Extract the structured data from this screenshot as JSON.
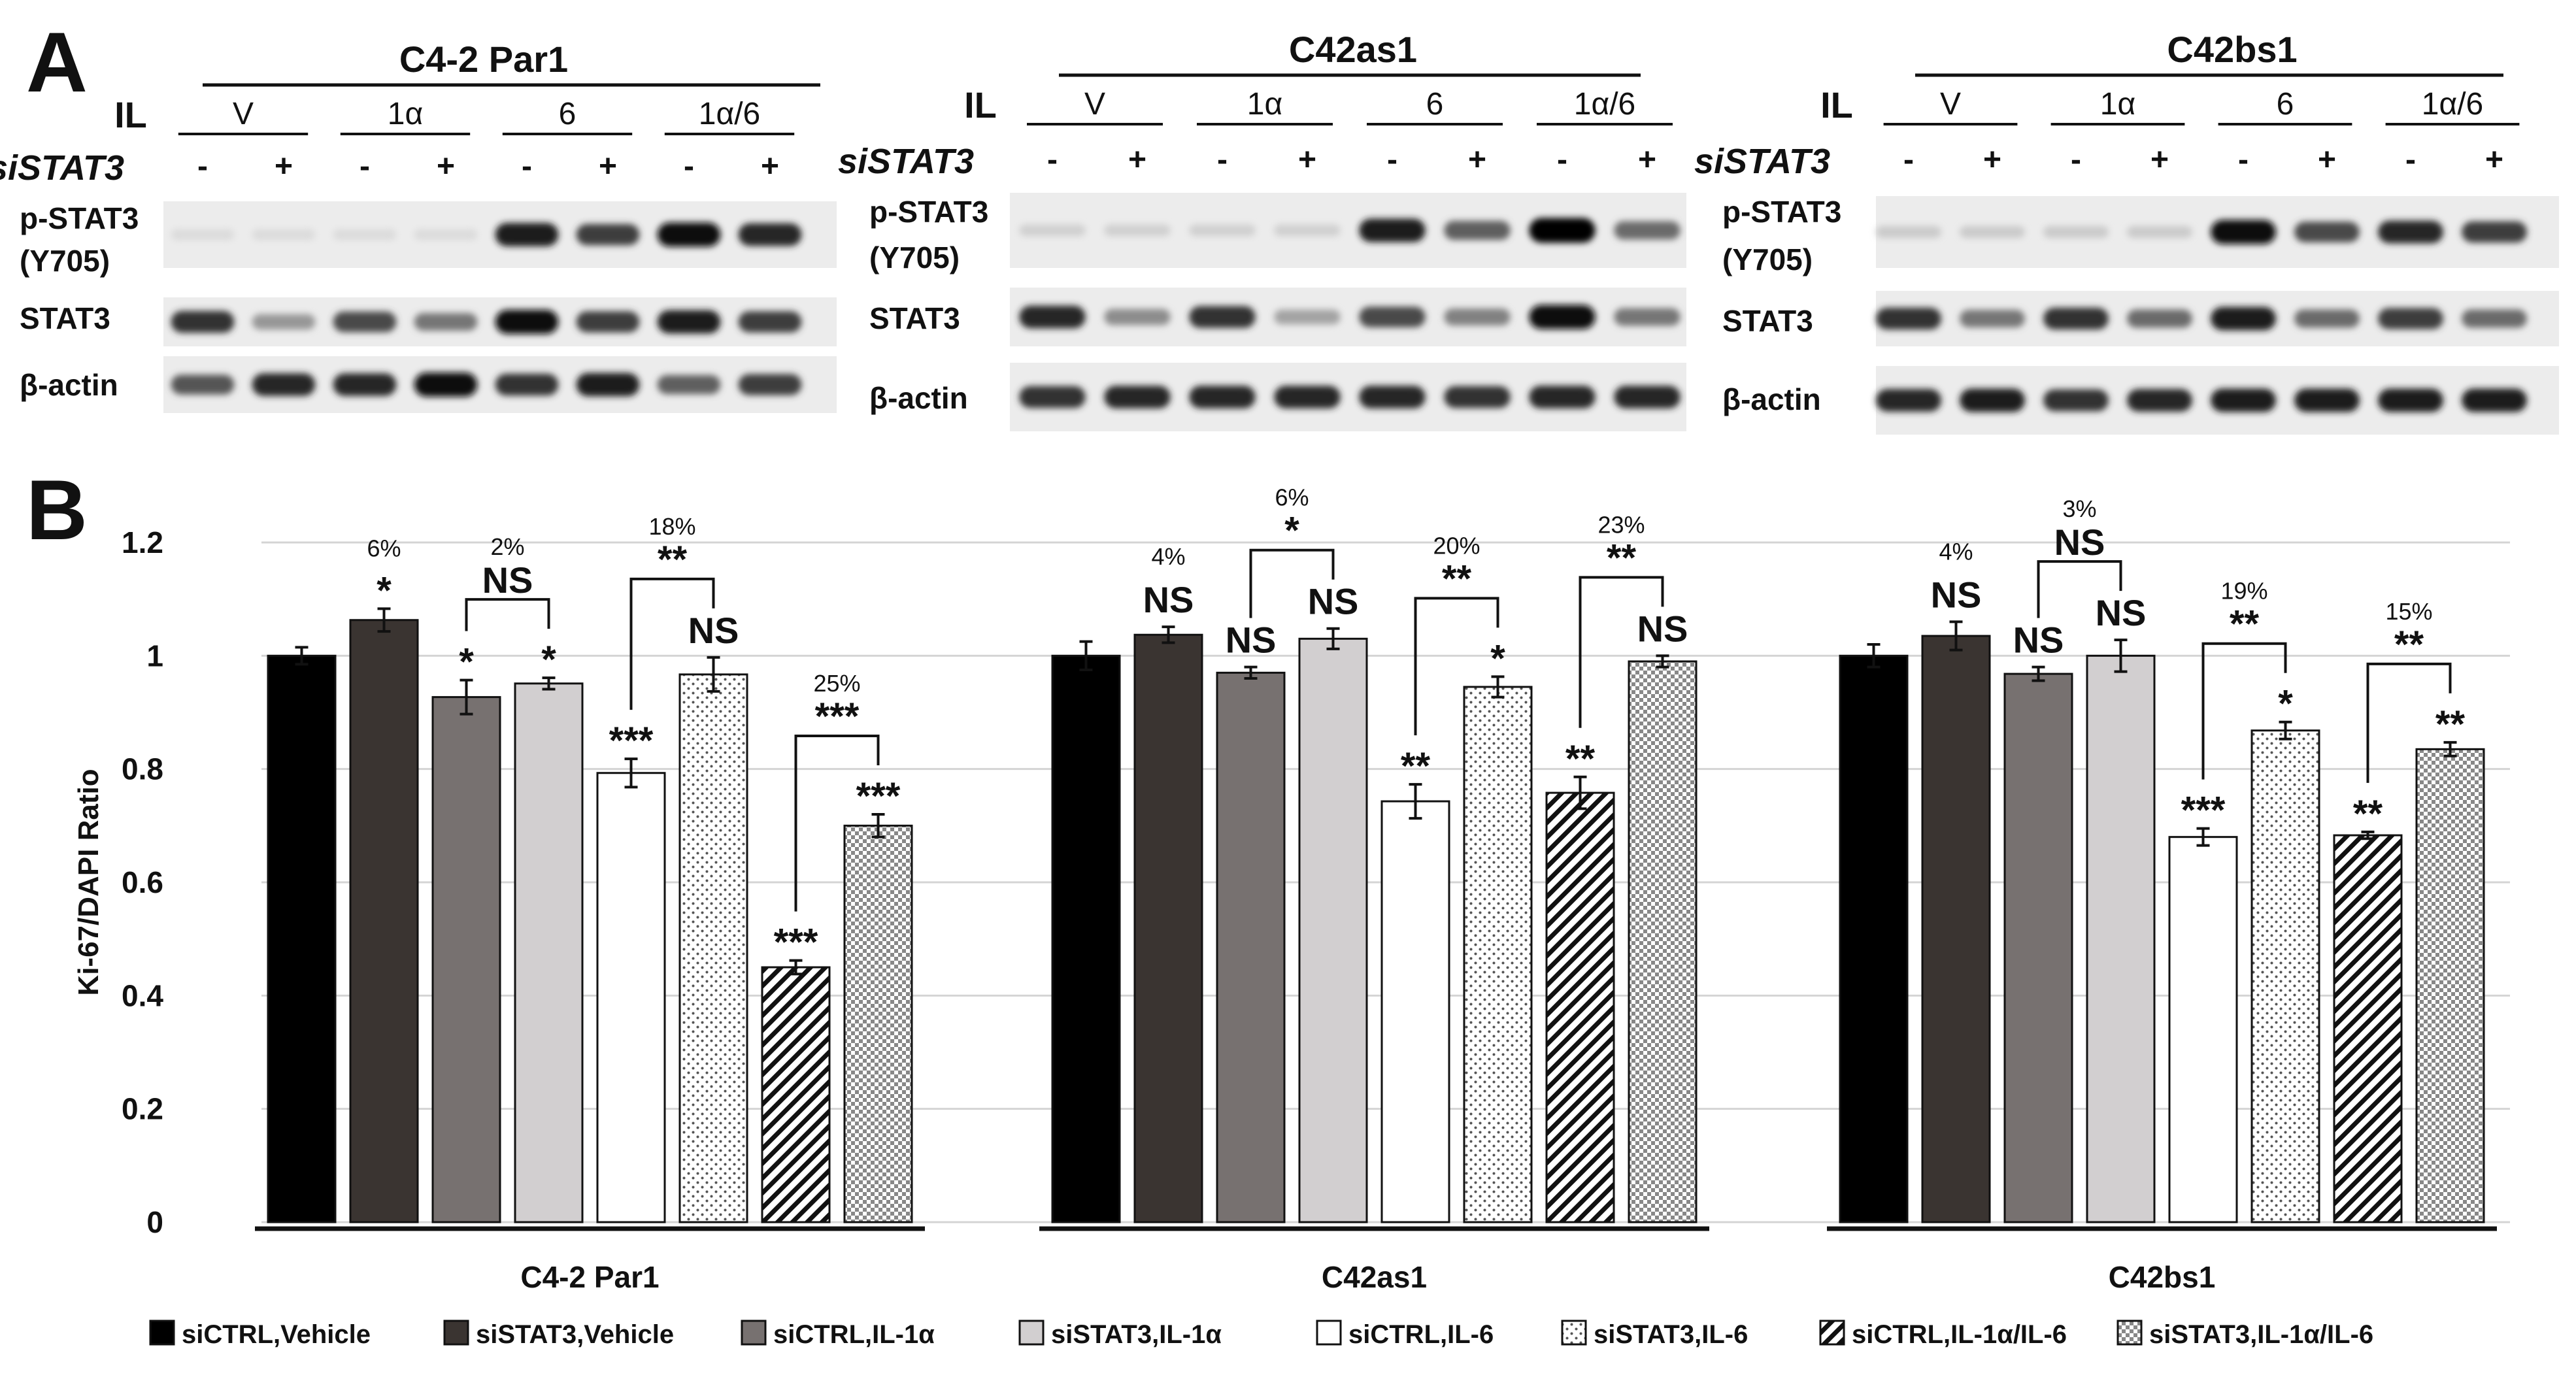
{
  "figure": {
    "panel_a_label": "A",
    "panel_b_label": "B"
  },
  "blots": {
    "il_label": "IL",
    "sistat3_label": "siSTAT3",
    "row_labels": [
      "p-STAT3",
      "(Y705)",
      "STAT3",
      "β-actin"
    ],
    "treatments": [
      "V",
      "1α",
      "6",
      "1α/6"
    ],
    "signs": [
      "-",
      "+"
    ],
    "panels": [
      {
        "title": "C4-2 Par1",
        "pstat3": [
          0.05,
          0.05,
          0.05,
          0.05,
          0.9,
          0.75,
          0.95,
          0.85
        ],
        "stat3": [
          0.8,
          0.35,
          0.7,
          0.5,
          0.95,
          0.75,
          0.9,
          0.75
        ],
        "actin": [
          0.65,
          0.85,
          0.85,
          0.95,
          0.8,
          0.9,
          0.6,
          0.75
        ]
      },
      {
        "title": "C42as1",
        "pstat3": [
          0.1,
          0.1,
          0.1,
          0.1,
          0.9,
          0.6,
          1.0,
          0.55
        ],
        "stat3": [
          0.85,
          0.4,
          0.8,
          0.3,
          0.7,
          0.45,
          0.95,
          0.5
        ],
        "actin": [
          0.8,
          0.85,
          0.85,
          0.85,
          0.85,
          0.8,
          0.85,
          0.85
        ]
      },
      {
        "title": "C42bs1",
        "pstat3": [
          0.12,
          0.12,
          0.12,
          0.12,
          0.95,
          0.7,
          0.85,
          0.75
        ],
        "stat3": [
          0.8,
          0.5,
          0.8,
          0.55,
          0.9,
          0.55,
          0.75,
          0.55
        ],
        "actin": [
          0.85,
          0.9,
          0.8,
          0.85,
          0.9,
          0.9,
          0.9,
          0.9
        ]
      }
    ]
  },
  "chart_data": {
    "type": "bar",
    "ylabel": "Ki-67/DAPI Ratio",
    "ylim": [
      0,
      1.2
    ],
    "yticks": [
      "0",
      "0.2",
      "0.4",
      "0.6",
      "0.8",
      "1",
      "1.2"
    ],
    "grid": true,
    "legend_position": "bottom",
    "categories": [
      "C4-2 Par1",
      "C42as1",
      "C42bs1"
    ],
    "series": [
      {
        "name": "siCTRL,Vehicle",
        "color": "#000000",
        "pattern": "solid",
        "values": [
          1.0,
          1.0,
          1.0
        ],
        "errors": [
          0.015,
          0.025,
          0.02
        ]
      },
      {
        "name": "siSTAT3,Vehicle",
        "color": "#3a3431",
        "pattern": "solid",
        "values": [
          1.063,
          1.037,
          1.035
        ],
        "errors": [
          0.02,
          0.014,
          0.025
        ]
      },
      {
        "name": "siCTRL,IL-1α",
        "color": "#777170",
        "pattern": "solid",
        "values": [
          0.927,
          0.97,
          0.968
        ],
        "errors": [
          0.03,
          0.01,
          0.012
        ]
      },
      {
        "name": "siSTAT3,IL-1α",
        "color": "#d2cfd0",
        "pattern": "solid",
        "values": [
          0.951,
          1.03,
          1.0
        ],
        "errors": [
          0.01,
          0.018,
          0.028
        ]
      },
      {
        "name": "siCTRL,IL-6",
        "color": "#ffffff",
        "pattern": "solid",
        "values": [
          0.793,
          0.743,
          0.68
        ],
        "errors": [
          0.025,
          0.03,
          0.015
        ]
      },
      {
        "name": "siSTAT3,IL-6",
        "color": "#ffffff",
        "pattern": "dots",
        "values": [
          0.967,
          0.945,
          0.868
        ],
        "errors": [
          0.03,
          0.018,
          0.015
        ]
      },
      {
        "name": "siCTRL,IL-1α/IL-6",
        "color": "#ffffff",
        "pattern": "diagonal",
        "values": [
          0.45,
          0.758,
          0.683
        ],
        "errors": [
          0.012,
          0.028,
          0.006
        ]
      },
      {
        "name": "siSTAT3,IL-1α/IL-6",
        "color": "#ffffff",
        "pattern": "check",
        "values": [
          0.7,
          0.99,
          0.835
        ],
        "errors": [
          0.02,
          0.01,
          0.012
        ]
      }
    ],
    "bar_annotations": [
      [
        "",
        "*",
        "*",
        "*",
        "***",
        "NS",
        "***",
        "***"
      ],
      [
        "",
        "NS",
        "NS",
        "NS",
        "**",
        "*",
        "**",
        "NS"
      ],
      [
        "",
        "NS",
        "NS",
        "NS",
        "***",
        "*",
        "**",
        "**"
      ]
    ],
    "percent_annotations": [
      {
        "group": 0,
        "bar": 1,
        "text": "6%"
      },
      {
        "group": 1,
        "bar": 1,
        "text": "4%"
      },
      {
        "group": 2,
        "bar": 1,
        "text": "4%"
      }
    ],
    "brackets": [
      {
        "group": 0,
        "from": 2,
        "to": 3,
        "label": "NS",
        "percent": "2%"
      },
      {
        "group": 0,
        "from": 4,
        "to": 5,
        "label": "**",
        "percent": "18%"
      },
      {
        "group": 0,
        "from": 6,
        "to": 7,
        "label": "***",
        "percent": "25%"
      },
      {
        "group": 1,
        "from": 2,
        "to": 3,
        "label": "*",
        "percent": "6%"
      },
      {
        "group": 1,
        "from": 4,
        "to": 5,
        "label": "**",
        "percent": "20%"
      },
      {
        "group": 1,
        "from": 6,
        "to": 7,
        "label": "**",
        "percent": "23%"
      },
      {
        "group": 2,
        "from": 2,
        "to": 3,
        "label": "NS",
        "percent": "3%"
      },
      {
        "group": 2,
        "from": 4,
        "to": 5,
        "label": "**",
        "percent": "19%"
      },
      {
        "group": 2,
        "from": 6,
        "to": 7,
        "label": "**",
        "percent": "15%"
      }
    ]
  }
}
